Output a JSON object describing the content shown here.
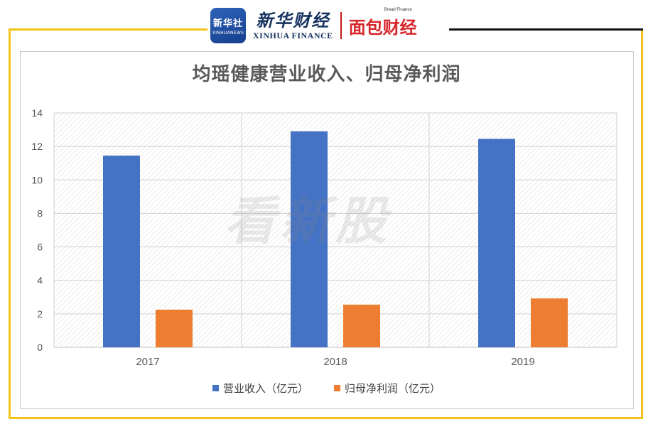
{
  "header": {
    "xinhuashe_logo_cn": "新华社",
    "xinhuashe_logo_en": "XINHUANEWS",
    "xinhua_finance_cn": "新华财经",
    "xinhua_finance_en": "XINHUA FINANCE",
    "bread_finance_small": "Bread Finance",
    "bread_finance_cn": "面包财经"
  },
  "watermark": "看新股",
  "colors": {
    "frame_accent": "#f2c318",
    "series_revenue": "#4472c4",
    "series_profit": "#ed7d31"
  },
  "chart_data": {
    "type": "bar",
    "title": "均瑶健康营业收入、归母净利润",
    "categories": [
      "2017",
      "2018",
      "2019"
    ],
    "series": [
      {
        "name": "营业收入（亿元）",
        "values": [
          11.45,
          12.9,
          12.45
        ]
      },
      {
        "name": "归母净利润（亿元）",
        "values": [
          2.25,
          2.55,
          2.92
        ]
      }
    ],
    "ylim": [
      0,
      14
    ],
    "yticks": [
      "0",
      "2",
      "4",
      "6",
      "8",
      "10",
      "12",
      "14"
    ],
    "grid": true,
    "legend": "bottom"
  }
}
